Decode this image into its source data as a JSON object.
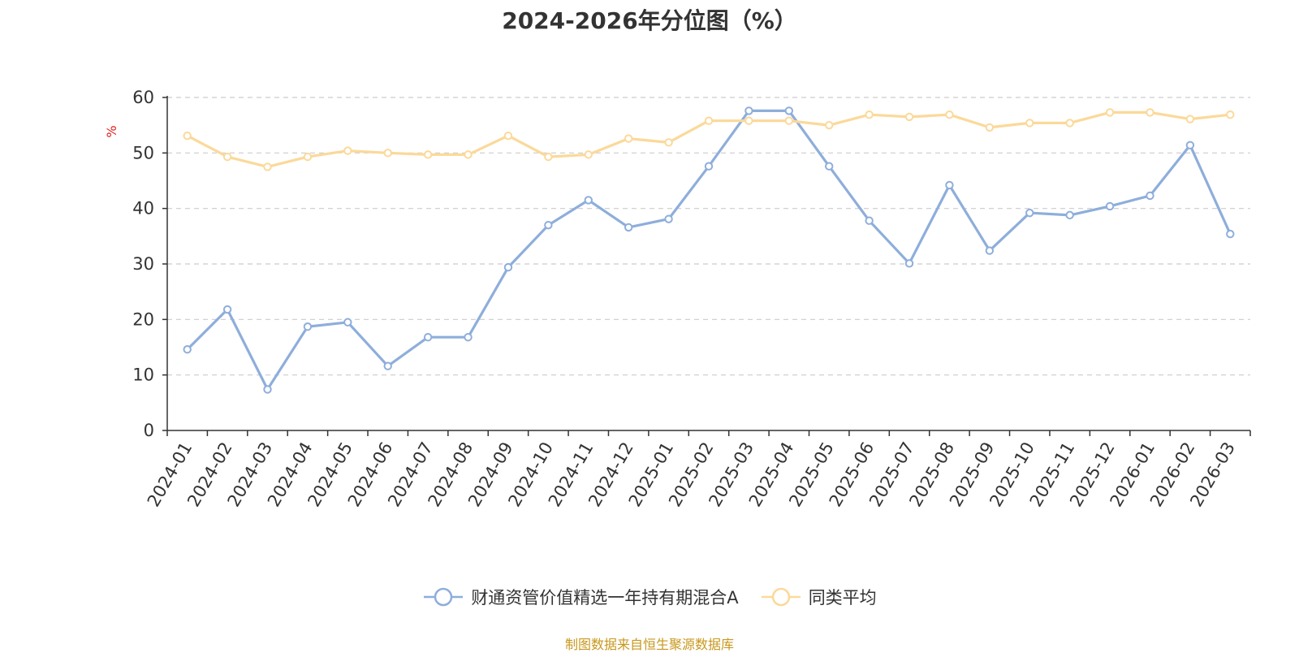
{
  "chart_data": {
    "type": "line",
    "title": "2024-2026年分位图（%）",
    "ylabel": "%",
    "ylim": [
      0,
      60
    ],
    "yticks": [
      0,
      10,
      20,
      30,
      40,
      50,
      60
    ],
    "grid": true,
    "legend_position": "bottom-center",
    "categories": [
      "2024-01",
      "2024-02",
      "2024-03",
      "2024-04",
      "2024-05",
      "2024-06",
      "2024-07",
      "2024-08",
      "2024-09",
      "2024-10",
      "2024-11",
      "2024-12",
      "2025-01",
      "2025-02",
      "2025-03",
      "2025-04",
      "2025-05",
      "2025-06",
      "2025-07",
      "2025-08",
      "2025-09",
      "2025-10",
      "2025-11",
      "2025-12",
      "2026-01",
      "2026-02",
      "2026-03"
    ],
    "series": [
      {
        "name": "财通资管价值精选一年持有期混合A",
        "color": "#8eaedb",
        "values": [
          14.6,
          21.8,
          7.4,
          18.7,
          19.5,
          11.6,
          16.8,
          16.8,
          29.4,
          37.0,
          41.5,
          36.6,
          38.1,
          47.6,
          57.6,
          57.6,
          47.6,
          37.8,
          30.1,
          44.2,
          32.4,
          39.2,
          38.8,
          40.4,
          42.3,
          51.4,
          35.4
        ]
      },
      {
        "name": "同类平均",
        "color": "#fbd99a",
        "values": [
          53.1,
          49.3,
          47.5,
          49.3,
          50.4,
          50.0,
          49.7,
          49.7,
          53.1,
          49.3,
          49.7,
          52.6,
          51.9,
          55.8,
          55.8,
          55.8,
          55.0,
          56.9,
          56.5,
          56.9,
          54.6,
          55.4,
          55.4,
          57.3,
          57.3,
          56.1,
          56.9
        ]
      }
    ]
  },
  "source_note": "制图数据来自恒生聚源数据库"
}
